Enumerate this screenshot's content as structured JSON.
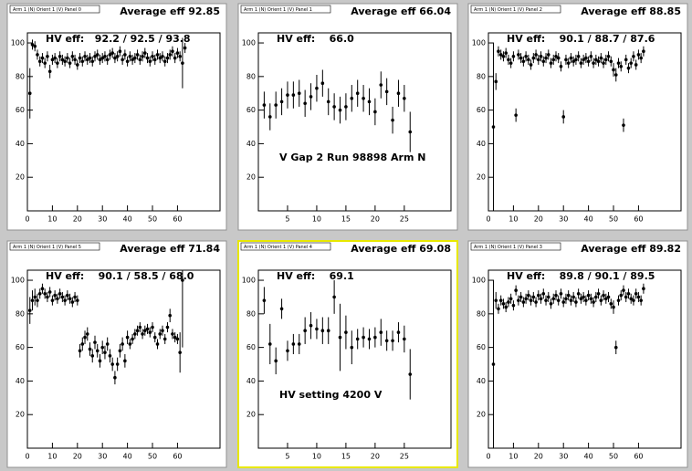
{
  "chart_data": [
    {
      "type": "scatter",
      "panel_label": "Arm 1 (N) Orient 1 (V) Panel 0",
      "title": "Average eff 92.85",
      "hv_text": "HV eff:   92.2 / 92.5 / 93.8",
      "color": "#000000",
      "xlim": [
        0,
        77
      ],
      "ylim": [
        0,
        106
      ],
      "xticks": [
        0,
        10,
        20,
        30,
        40,
        50,
        60
      ],
      "yticks": [
        20,
        40,
        60,
        80,
        100
      ],
      "x": [
        1,
        2,
        3,
        4,
        5,
        6,
        7,
        8,
        9,
        10,
        11,
        12,
        13,
        14,
        15,
        16,
        17,
        18,
        19,
        20,
        21,
        22,
        23,
        24,
        25,
        26,
        27,
        28,
        29,
        30,
        31,
        32,
        33,
        34,
        35,
        36,
        37,
        38,
        39,
        40,
        41,
        42,
        43,
        44,
        45,
        46,
        47,
        48,
        49,
        50,
        51,
        52,
        53,
        54,
        55,
        56,
        57,
        58,
        59,
        60,
        61,
        62,
        63
      ],
      "values": [
        70,
        99,
        98,
        93,
        89,
        91,
        88,
        92,
        83,
        90,
        91,
        88,
        92,
        90,
        89,
        91,
        88,
        92,
        90,
        87,
        91,
        89,
        92,
        90,
        91,
        89,
        92,
        93,
        90,
        91,
        92,
        90,
        93,
        94,
        91,
        92,
        95,
        90,
        93,
        89,
        92,
        90,
        91,
        93,
        90,
        92,
        94,
        91,
        89,
        92,
        90,
        93,
        91,
        92,
        89,
        91,
        93,
        95,
        91,
        94,
        92,
        88,
        97
      ],
      "errors": [
        15,
        3,
        3,
        3,
        3,
        3,
        3,
        3,
        4,
        3,
        3,
        3,
        3,
        3,
        3,
        3,
        3,
        3,
        3,
        3,
        3,
        3,
        3,
        3,
        3,
        3,
        3,
        3,
        3,
        3,
        3,
        3,
        3,
        3,
        3,
        3,
        3,
        3,
        3,
        3,
        3,
        3,
        3,
        3,
        3,
        3,
        3,
        3,
        3,
        3,
        3,
        3,
        3,
        3,
        3,
        3,
        3,
        3,
        3,
        3,
        3,
        15,
        3
      ]
    },
    {
      "type": "scatter",
      "panel_label": "Arm 1 (N) Orient 1 (V) Panel 1",
      "title": "Average eff 66.04",
      "hv_text": "HV eff:    66.0",
      "annotation": "V Gap 2 Run 98898 Arm N",
      "color": "#000000",
      "xlim": [
        0,
        33
      ],
      "ylim": [
        0,
        106
      ],
      "xticks": [
        5,
        10,
        15,
        20,
        25
      ],
      "yticks": [
        20,
        40,
        60,
        80,
        100
      ],
      "x": [
        1,
        2,
        3,
        4,
        5,
        6,
        7,
        8,
        9,
        10,
        11,
        12,
        13,
        14,
        15,
        16,
        17,
        18,
        19,
        20,
        21,
        22,
        23,
        24,
        25,
        26
      ],
      "values": [
        63,
        56,
        63,
        65,
        69,
        69,
        70,
        64,
        68,
        73,
        76,
        65,
        62,
        60,
        62,
        67,
        70,
        67,
        65,
        59,
        75,
        71,
        54,
        70,
        67,
        47
      ],
      "errors": [
        8,
        8,
        8,
        8,
        8,
        8,
        8,
        8,
        8,
        8,
        8,
        8,
        8,
        8,
        8,
        8,
        8,
        8,
        8,
        8,
        8,
        8,
        8,
        8,
        8,
        12
      ]
    },
    {
      "type": "scatter",
      "panel_label": "Arm 1 (N) Orient 1 (V) Panel 2",
      "title": "Average eff 88.85",
      "hv_text": "HV eff:    90.1 / 88.7 / 87.6",
      "color": "#000000",
      "xlim": [
        0,
        77
      ],
      "ylim": [
        0,
        106
      ],
      "xticks": [
        0,
        10,
        20,
        30,
        40,
        50,
        60
      ],
      "yticks": [
        20,
        40,
        60,
        80,
        100
      ],
      "x": [
        2,
        3,
        4,
        5,
        6,
        7,
        8,
        9,
        10,
        11,
        12,
        13,
        14,
        15,
        16,
        17,
        18,
        19,
        20,
        21,
        22,
        23,
        24,
        25,
        26,
        27,
        28,
        29,
        30,
        31,
        32,
        33,
        34,
        35,
        36,
        37,
        38,
        39,
        40,
        41,
        42,
        43,
        44,
        45,
        46,
        47,
        48,
        49,
        50,
        51,
        52,
        53,
        54,
        55,
        56,
        57,
        58,
        59,
        60,
        61,
        62
      ],
      "values": [
        50,
        77,
        95,
        93,
        92,
        94,
        90,
        88,
        92,
        57,
        93,
        91,
        89,
        92,
        90,
        87,
        91,
        93,
        90,
        92,
        89,
        91,
        93,
        88,
        90,
        92,
        91,
        86,
        56,
        90,
        88,
        91,
        89,
        90,
        92,
        88,
        90,
        91,
        89,
        92,
        88,
        90,
        89,
        91,
        88,
        90,
        92,
        89,
        84,
        81,
        88,
        86,
        51,
        90,
        85,
        88,
        92,
        87,
        93,
        91,
        95
      ],
      "errors": [
        50,
        5,
        3,
        3,
        3,
        3,
        3,
        3,
        3,
        4,
        3,
        3,
        3,
        3,
        3,
        3,
        3,
        3,
        3,
        3,
        3,
        3,
        3,
        3,
        3,
        3,
        3,
        3,
        4,
        3,
        3,
        3,
        3,
        3,
        3,
        3,
        3,
        3,
        3,
        3,
        3,
        3,
        3,
        3,
        3,
        3,
        3,
        3,
        4,
        4,
        3,
        3,
        4,
        3,
        3,
        3,
        3,
        3,
        3,
        3,
        3
      ]
    },
    {
      "type": "scatter",
      "panel_label": "Arm 1 (N) Orient 1 (V) Panel 5",
      "title": "Average eff 71.84",
      "hv_text": "HV eff:    90.1 / 58.5 / 68.0",
      "color": "#000000",
      "xlim": [
        0,
        77
      ],
      "ylim": [
        0,
        106
      ],
      "xticks": [
        0,
        10,
        20,
        30,
        40,
        50,
        60
      ],
      "yticks": [
        20,
        40,
        60,
        80,
        100
      ],
      "x": [
        1,
        2,
        3,
        4,
        5,
        6,
        7,
        8,
        9,
        10,
        11,
        12,
        13,
        14,
        15,
        16,
        17,
        18,
        19,
        20,
        21,
        22,
        23,
        24,
        25,
        26,
        27,
        28,
        29,
        30,
        31,
        32,
        33,
        34,
        35,
        36,
        37,
        38,
        39,
        40,
        41,
        42,
        43,
        44,
        45,
        46,
        47,
        48,
        49,
        50,
        51,
        52,
        53,
        54,
        55,
        56,
        57,
        58,
        59,
        60,
        61,
        62
      ],
      "values": [
        82,
        88,
        90,
        88,
        92,
        95,
        92,
        90,
        93,
        88,
        91,
        89,
        92,
        90,
        88,
        91,
        89,
        87,
        90,
        88,
        58,
        62,
        66,
        68,
        59,
        55,
        63,
        58,
        52,
        60,
        57,
        62,
        55,
        50,
        42,
        50,
        58,
        62,
        52,
        66,
        62,
        65,
        68,
        70,
        72,
        68,
        70,
        71,
        69,
        72,
        66,
        62,
        68,
        70,
        65,
        72,
        79,
        68,
        66,
        65,
        57,
        100
      ],
      "errors": [
        8,
        6,
        5,
        4,
        3,
        3,
        3,
        3,
        3,
        3,
        3,
        3,
        3,
        3,
        3,
        3,
        3,
        3,
        3,
        3,
        4,
        4,
        4,
        4,
        4,
        4,
        4,
        4,
        4,
        4,
        4,
        4,
        4,
        4,
        4,
        4,
        4,
        4,
        4,
        4,
        3,
        3,
        3,
        3,
        3,
        3,
        3,
        3,
        3,
        3,
        3,
        3,
        3,
        3,
        3,
        3,
        4,
        3,
        3,
        3,
        12,
        40
      ]
    },
    {
      "type": "scatter",
      "panel_label": "Arm 1 (N) Orient 1 (V) Panel 4",
      "title": "Average eff 69.08",
      "hv_text": "HV eff:    69.1",
      "annotation": "HV setting 4200 V",
      "color": "#000000",
      "highlighted": true,
      "xlim": [
        0,
        33
      ],
      "ylim": [
        0,
        106
      ],
      "xticks": [
        5,
        10,
        15,
        20,
        25
      ],
      "yticks": [
        20,
        40,
        60,
        80,
        100
      ],
      "x": [
        1,
        2,
        3,
        4,
        5,
        6,
        7,
        8,
        9,
        10,
        11,
        12,
        13,
        14,
        15,
        16,
        17,
        18,
        19,
        20,
        21,
        22,
        23,
        24,
        25,
        26
      ],
      "values": [
        88,
        62,
        52,
        83,
        58,
        62,
        62,
        70,
        73,
        71,
        70,
        70,
        90,
        66,
        69,
        60,
        65,
        66,
        65,
        66,
        69,
        64,
        64,
        69,
        65,
        44
      ],
      "errors": [
        8,
        12,
        8,
        6,
        6,
        6,
        6,
        8,
        8,
        6,
        8,
        8,
        10,
        20,
        10,
        10,
        6,
        6,
        6,
        6,
        8,
        6,
        6,
        6,
        8,
        15
      ]
    },
    {
      "type": "scatter",
      "panel_label": "Arm 1 (N) Orient 1 (V) Panel 3",
      "title": "Average eff 89.82",
      "hv_text": "HV eff:    89.8 / 90.1 / 89.5",
      "color": "#000000",
      "xlim": [
        0,
        77
      ],
      "ylim": [
        0,
        106
      ],
      "xticks": [
        0,
        10,
        20,
        30,
        40,
        50,
        60
      ],
      "yticks": [
        20,
        40,
        60,
        80,
        100
      ],
      "x": [
        2,
        3,
        4,
        5,
        6,
        7,
        8,
        9,
        10,
        11,
        12,
        13,
        14,
        15,
        16,
        17,
        18,
        19,
        20,
        21,
        22,
        23,
        24,
        25,
        26,
        27,
        28,
        29,
        30,
        31,
        32,
        33,
        34,
        35,
        36,
        37,
        38,
        39,
        40,
        41,
        42,
        43,
        44,
        45,
        46,
        47,
        48,
        49,
        50,
        51,
        52,
        53,
        54,
        55,
        56,
        57,
        58,
        59,
        60,
        61,
        62
      ],
      "values": [
        50,
        88,
        83,
        88,
        86,
        84,
        87,
        89,
        85,
        94,
        88,
        90,
        87,
        89,
        91,
        88,
        90,
        87,
        91,
        89,
        92,
        88,
        90,
        86,
        89,
        91,
        88,
        92,
        87,
        89,
        91,
        88,
        90,
        87,
        92,
        89,
        90,
        88,
        91,
        89,
        87,
        90,
        92,
        88,
        91,
        89,
        90,
        86,
        84,
        60,
        88,
        91,
        94,
        90,
        92,
        89,
        88,
        92,
        90,
        88,
        95
      ],
      "errors": [
        50,
        5,
        3,
        3,
        3,
        3,
        3,
        3,
        3,
        3,
        3,
        3,
        3,
        3,
        3,
        3,
        3,
        3,
        3,
        3,
        3,
        3,
        3,
        3,
        3,
        3,
        3,
        3,
        3,
        3,
        3,
        3,
        3,
        3,
        3,
        3,
        3,
        3,
        3,
        3,
        3,
        3,
        3,
        3,
        3,
        3,
        3,
        3,
        4,
        4,
        3,
        3,
        3,
        3,
        3,
        3,
        3,
        3,
        3,
        3,
        3
      ]
    }
  ]
}
